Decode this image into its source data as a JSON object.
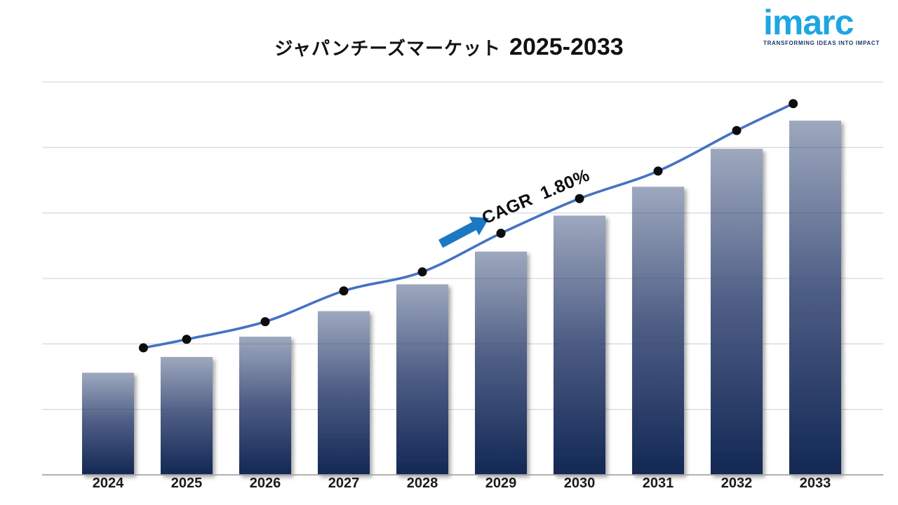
{
  "title": {
    "jp": "ジャパンチーズマーケット",
    "range": "2025-2033"
  },
  "logo": {
    "wordmark": "imarc",
    "tagline": "TRANSFORMING IDEAS INTO IMPACT",
    "wordmark_color": "#1EA6E2",
    "tagline_color": "#1C3664"
  },
  "annotation": {
    "label": "CAGR  1.80%",
    "text_color": "#0D0D0D",
    "arrow_color": "#1B78C2"
  },
  "chart_data": {
    "type": "bar",
    "title": "ジャパンチーズマーケット 2025-2033",
    "categories": [
      "2024",
      "2025",
      "2026",
      "2027",
      "2028",
      "2029",
      "2030",
      "2031",
      "2032",
      "2033"
    ],
    "series": [
      {
        "name": "market-size-bars",
        "type": "bar",
        "values": [
          1.56,
          1.8,
          2.11,
          2.5,
          2.91,
          3.41,
          3.96,
          4.4,
          4.98,
          5.41
        ]
      },
      {
        "name": "trend-line",
        "type": "line",
        "values": [
          1.94,
          2.07,
          2.34,
          2.81,
          3.1,
          3.69,
          4.22,
          4.64,
          5.26,
          5.67
        ],
        "x_index": [
          0.45,
          1,
          2,
          3,
          4,
          5,
          6,
          7,
          8,
          8.72
        ]
      }
    ],
    "xlabel": "",
    "ylabel": "",
    "ylim": [
      0,
      6
    ],
    "y_axis_labels_shown": false,
    "units_note": "no numeric axis labels in source; values estimated in gridline intervals (1 unit = 1 interval)",
    "gridline_count": 7,
    "grid_on": true,
    "legend_position": "none",
    "colors": {
      "bar_top": "#9DA8BE",
      "bar_mid": "#4E5D85",
      "bar_bottom": "#122854",
      "line": "#4472C4",
      "marker": "#0D0D0D",
      "gridline": "#D9D9D9",
      "axis": "#A6A6A6"
    }
  }
}
